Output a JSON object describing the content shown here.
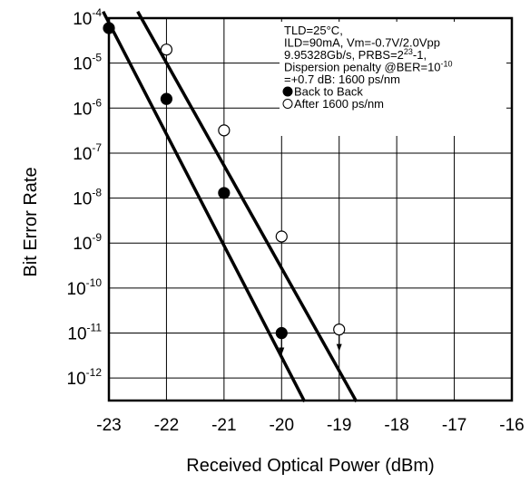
{
  "chart_data": {
    "type": "scatter",
    "xlabel": "Received Optical Power (dBm)",
    "ylabel": "Bit Error Rate",
    "xlim": [
      -23,
      -16
    ],
    "ylim_log10": [
      -12.5,
      -4
    ],
    "log_scale_y": true,
    "grid": true,
    "x_ticks": [
      "-23",
      "-22",
      "-21",
      "-20",
      "-19",
      "-18",
      "-17",
      "-16"
    ],
    "y_ticks": [
      {
        "base": "10",
        "exp": "-4"
      },
      {
        "base": "10",
        "exp": "-5"
      },
      {
        "base": "10",
        "exp": "-6"
      },
      {
        "base": "10",
        "exp": "-7"
      },
      {
        "base": "10",
        "exp": "-8"
      },
      {
        "base": "10",
        "exp": "-9"
      },
      {
        "base": "10",
        "exp": "-10"
      },
      {
        "base": "10",
        "exp": "-11"
      },
      {
        "base": "10",
        "exp": "-12"
      }
    ],
    "legend_placement": "top-right",
    "annotation": [
      [
        "TLD=25°C,"
      ],
      [
        "ILD=90mA, Vm=-0.7V/2.0Vpp"
      ],
      [
        "9.95328Gb/s, PRBS=2",
        {
          "sup": "23"
        },
        "-1,"
      ],
      [
        "Dispersion penalty @BER=10",
        {
          "sup": "-10"
        }
      ],
      [
        "=+0.7 dB: 1600 ps/nm"
      ]
    ],
    "series": [
      {
        "name": "Back to Back",
        "marker": "filled-circle",
        "x": [
          -23,
          -22,
          -21,
          -20
        ],
        "y": [
          6e-05,
          1.6e-06,
          1.3e-08,
          1e-11
        ],
        "fit_line": {
          "x": [
            -23.1,
            -19.6
          ],
          "y": [
            0.00014,
            3e-13
          ]
        },
        "arrow_at_x": -20
      },
      {
        "name": "After 1600 ps/nm",
        "marker": "open-circle",
        "x": [
          -22,
          -21,
          -20,
          -19
        ],
        "y": [
          2e-05,
          3.2e-07,
          1.4e-09,
          1.2e-11
        ],
        "fit_line": {
          "x": [
            -22.5,
            -18.7
          ],
          "y": [
            0.00014,
            3e-13
          ]
        },
        "arrow_at_x": -19
      }
    ]
  }
}
